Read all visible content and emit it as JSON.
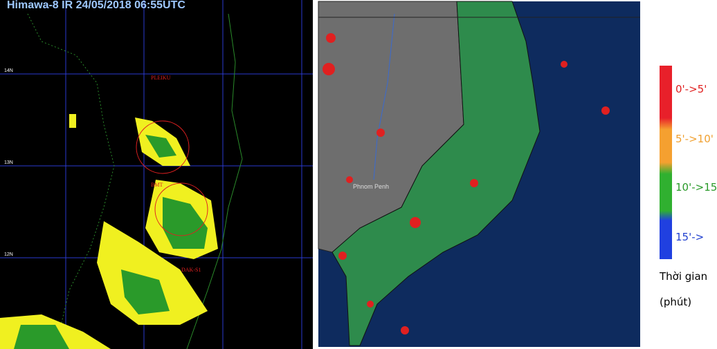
{
  "left_panel": {
    "title": "Himawa-8 IR 24/05/2018 06:55UTC",
    "lat_labels": [
      "14N",
      "13N",
      "12N"
    ],
    "places": [
      "PLEIKU",
      "BMT",
      "DAK-S1"
    ]
  },
  "right_panel": {
    "places": [
      "Phnom Penh"
    ]
  },
  "legend": {
    "items": [
      "0'->5'",
      "5'->10'",
      "10'->15'",
      "15'->"
    ],
    "caption": [
      "Thời gian",
      "(phút)"
    ]
  }
}
